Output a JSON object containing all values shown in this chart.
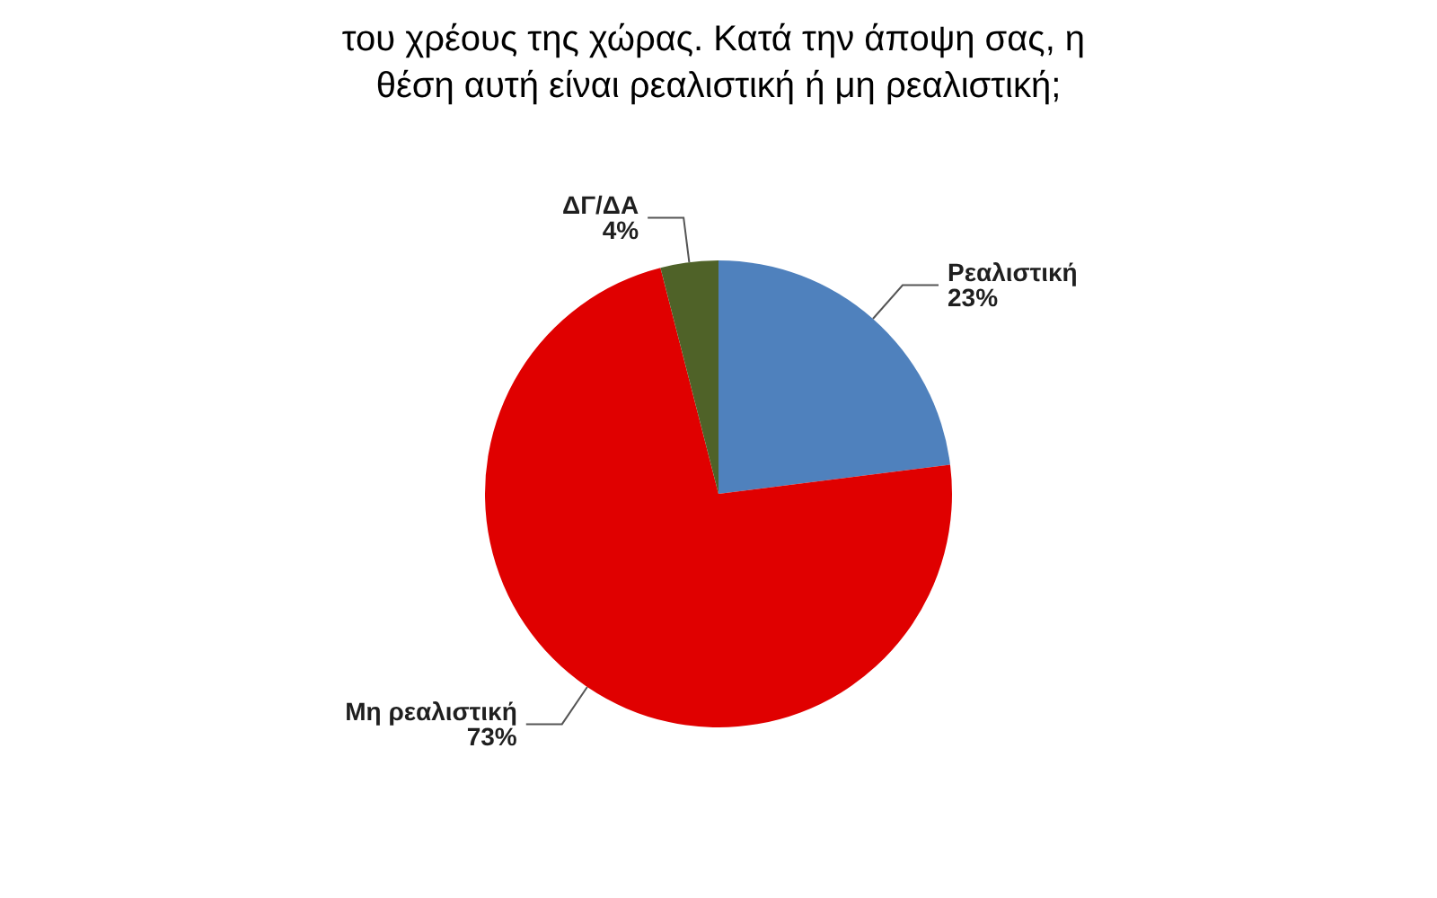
{
  "chart_data": {
    "type": "pie",
    "title": "του χρέους της χώρας. Κατά την άποψη σας, η θέση αυτή είναι ρεαλιστική ή μη ρεαλιστική;",
    "categories": [
      "Ρεαλιστική",
      "Μη ρεαλιστική",
      "ΔΓ/ΔΑ"
    ],
    "values": [
      23,
      73,
      4
    ],
    "value_labels": [
      "23%",
      "73%",
      "4%"
    ],
    "colors": [
      "#4f81bd",
      "#e00000",
      "#4f6228"
    ],
    "legend": false
  }
}
